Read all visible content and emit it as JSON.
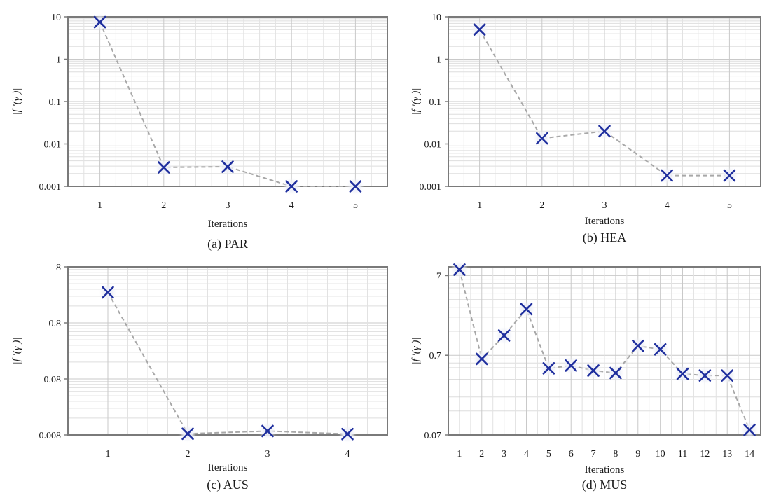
{
  "chart_data": [
    {
      "type": "scatter",
      "caption": "(a) PAR",
      "xlabel": "Iterations",
      "ylabel": "|f '(γ )|",
      "yscale": "log",
      "ylim": [
        0.001,
        10
      ],
      "xlim": [
        0.5,
        5.5
      ],
      "yticks": [
        0.001,
        0.01,
        0.1,
        1,
        10
      ],
      "ytick_labels": [
        "0.001",
        "0.01",
        "0.1",
        "1",
        "10"
      ],
      "xticks": [
        1,
        2,
        3,
        4,
        5
      ],
      "xtick_labels": [
        "1",
        "2",
        "3",
        "4",
        "5"
      ],
      "grid": true,
      "marker_color": "#1f2f9e",
      "line_color": "#a8a8a8",
      "series": [
        {
          "x": [
            1,
            2,
            3,
            4,
            5
          ],
          "y": [
            7.5,
            0.0028,
            0.0029,
            0.001,
            0.001
          ]
        }
      ]
    },
    {
      "type": "scatter",
      "caption": "(b) HEA",
      "xlabel": "Iterations",
      "ylabel": "|f '(γ )|",
      "yscale": "log",
      "ylim": [
        0.001,
        10
      ],
      "xlim": [
        0.5,
        5.5
      ],
      "yticks": [
        0.001,
        0.01,
        0.1,
        1,
        10
      ],
      "ytick_labels": [
        "0.001",
        "0.01",
        "0.1",
        "1",
        "10"
      ],
      "xticks": [
        1,
        2,
        3,
        4,
        5
      ],
      "xtick_labels": [
        "1",
        "2",
        "3",
        "4",
        "5"
      ],
      "grid": true,
      "marker_color": "#1f2f9e",
      "line_color": "#a8a8a8",
      "series": [
        {
          "x": [
            1,
            2,
            3,
            4,
            5
          ],
          "y": [
            5.0,
            0.0135,
            0.02,
            0.0018,
            0.0018
          ]
        }
      ]
    },
    {
      "type": "scatter",
      "caption": "(c) AUS",
      "xlabel": "Iterations",
      "ylabel": "|f '(γ )|",
      "yscale": "log",
      "ylim": [
        0.008,
        8
      ],
      "xlim": [
        0.5,
        4.5
      ],
      "yticks": [
        0.008,
        0.08,
        0.8,
        8
      ],
      "ytick_labels": [
        "0.008",
        "0.08",
        "0.8",
        "8"
      ],
      "xticks": [
        1,
        2,
        3,
        4
      ],
      "xtick_labels": [
        "1",
        "2",
        "3",
        "4"
      ],
      "grid": true,
      "marker_color": "#1f2f9e",
      "line_color": "#a8a8a8",
      "series": [
        {
          "x": [
            1,
            2,
            3,
            4
          ],
          "y": [
            2.8,
            0.0084,
            0.0094,
            0.0083
          ]
        }
      ]
    },
    {
      "type": "scatter",
      "caption": "(d) MUS",
      "xlabel": "Iterations",
      "ylabel": "|f '(γ )|",
      "yscale": "log",
      "ylim": [
        0.07,
        9
      ],
      "xlim": [
        0.5,
        14.5
      ],
      "yticks": [
        0.07,
        0.7,
        7
      ],
      "ytick_labels": [
        "0.07",
        "0.7",
        "7"
      ],
      "xticks": [
        1,
        2,
        3,
        4,
        5,
        6,
        7,
        8,
        9,
        10,
        11,
        12,
        13,
        14
      ],
      "xtick_labels": [
        "1",
        "2",
        "3",
        "4",
        "5",
        "6",
        "7",
        "8",
        "9",
        "10",
        "11",
        "12",
        "13",
        "14"
      ],
      "grid": true,
      "marker_color": "#1f2f9e",
      "line_color": "#a8a8a8",
      "series": [
        {
          "x": [
            1,
            2,
            3,
            4,
            5,
            6,
            7,
            8,
            9,
            10,
            11,
            12,
            13,
            14
          ],
          "y": [
            8.3,
            0.63,
            1.24,
            2.65,
            0.48,
            0.52,
            0.45,
            0.42,
            0.92,
            0.83,
            0.41,
            0.39,
            0.39,
            0.081
          ]
        }
      ]
    }
  ]
}
